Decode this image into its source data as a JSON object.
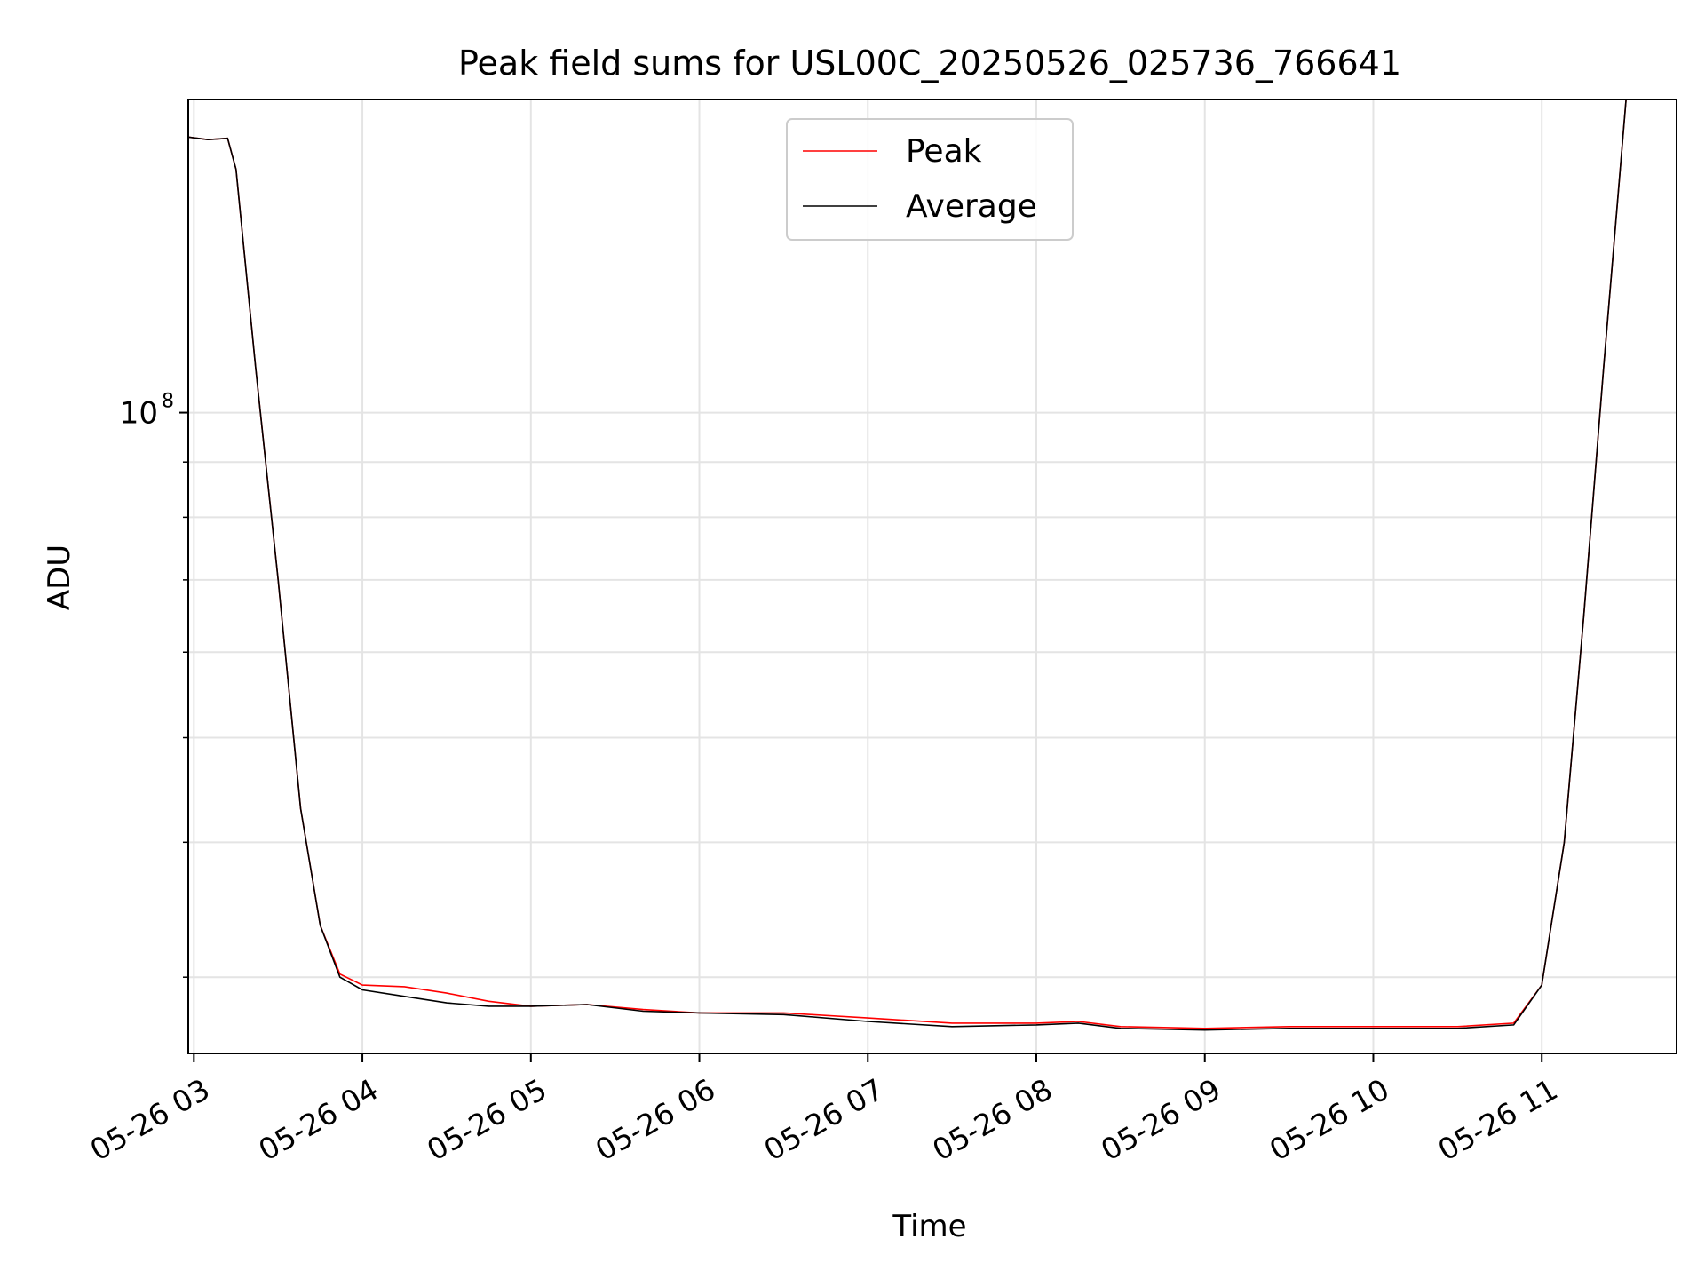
{
  "chart_data": {
    "type": "line",
    "title": "Peak field sums for USL00C_20250526_025736_766641",
    "xlabel": "Time",
    "ylabel": "ADU",
    "y_scale": "log",
    "ylim": [
      25500000,
      195000000
    ],
    "xlim": [
      "2025-05-26 02:58",
      "2025-05-26 11:48"
    ],
    "grid": true,
    "legend_position": "upper-center",
    "x_ticks": [
      {
        "t": "2025-05-26 03:00",
        "label": "05-26 03"
      },
      {
        "t": "2025-05-26 04:00",
        "label": "05-26 04"
      },
      {
        "t": "2025-05-26 05:00",
        "label": "05-26 05"
      },
      {
        "t": "2025-05-26 06:00",
        "label": "05-26 06"
      },
      {
        "t": "2025-05-26 07:00",
        "label": "05-26 07"
      },
      {
        "t": "2025-05-26 08:00",
        "label": "05-26 08"
      },
      {
        "t": "2025-05-26 09:00",
        "label": "05-26 09"
      },
      {
        "t": "2025-05-26 10:00",
        "label": "05-26 10"
      },
      {
        "t": "2025-05-26 11:00",
        "label": "05-26 11"
      }
    ],
    "y_major_tick": {
      "value": 100000000,
      "label_base": "10",
      "label_exp": "8"
    },
    "y_minor_ticks": [
      30000000,
      40000000,
      50000000,
      60000000,
      70000000,
      80000000,
      90000000
    ],
    "series": [
      {
        "name": "Peak",
        "color": "#ff0000",
        "points": [
          [
            "2025-05-26 02:58",
            180000000
          ],
          [
            "2025-05-26 03:05",
            179000000
          ],
          [
            "2025-05-26 03:12",
            179500000
          ],
          [
            "2025-05-26 03:15",
            168000000
          ],
          [
            "2025-05-26 03:22",
            110000000
          ],
          [
            "2025-05-26 03:30",
            70000000
          ],
          [
            "2025-05-26 03:38",
            43000000
          ],
          [
            "2025-05-26 03:45",
            33500000
          ],
          [
            "2025-05-26 03:52",
            30200000
          ],
          [
            "2025-05-26 04:00",
            29500000
          ],
          [
            "2025-05-26 04:15",
            29400000
          ],
          [
            "2025-05-26 04:30",
            29000000
          ],
          [
            "2025-05-26 04:45",
            28500000
          ],
          [
            "2025-05-26 05:00",
            28200000
          ],
          [
            "2025-05-26 05:20",
            28300000
          ],
          [
            "2025-05-26 05:40",
            28000000
          ],
          [
            "2025-05-26 06:00",
            27800000
          ],
          [
            "2025-05-26 06:30",
            27800000
          ],
          [
            "2025-05-26 07:00",
            27500000
          ],
          [
            "2025-05-26 07:30",
            27200000
          ],
          [
            "2025-05-26 08:00",
            27200000
          ],
          [
            "2025-05-26 08:15",
            27300000
          ],
          [
            "2025-05-26 08:30",
            27000000
          ],
          [
            "2025-05-26 09:00",
            26900000
          ],
          [
            "2025-05-26 09:30",
            27000000
          ],
          [
            "2025-05-26 10:00",
            27000000
          ],
          [
            "2025-05-26 10:30",
            27000000
          ],
          [
            "2025-05-26 10:50",
            27200000
          ],
          [
            "2025-05-26 11:00",
            29500000
          ],
          [
            "2025-05-26 11:08",
            40000000
          ],
          [
            "2025-05-26 11:15",
            65000000
          ],
          [
            "2025-05-26 11:22",
            110000000
          ],
          [
            "2025-05-26 11:30",
            195000000
          ],
          [
            "2025-05-26 11:35",
            195000000
          ]
        ]
      },
      {
        "name": "Average",
        "color": "#000000",
        "points": [
          [
            "2025-05-26 02:58",
            180000000
          ],
          [
            "2025-05-26 03:05",
            179000000
          ],
          [
            "2025-05-26 03:12",
            179500000
          ],
          [
            "2025-05-26 03:15",
            168000000
          ],
          [
            "2025-05-26 03:22",
            110000000
          ],
          [
            "2025-05-26 03:30",
            70000000
          ],
          [
            "2025-05-26 03:38",
            43000000
          ],
          [
            "2025-05-26 03:45",
            33500000
          ],
          [
            "2025-05-26 03:52",
            30000000
          ],
          [
            "2025-05-26 04:00",
            29200000
          ],
          [
            "2025-05-26 04:15",
            28800000
          ],
          [
            "2025-05-26 04:30",
            28400000
          ],
          [
            "2025-05-26 04:45",
            28200000
          ],
          [
            "2025-05-26 05:00",
            28200000
          ],
          [
            "2025-05-26 05:20",
            28300000
          ],
          [
            "2025-05-26 05:40",
            27900000
          ],
          [
            "2025-05-26 06:00",
            27800000
          ],
          [
            "2025-05-26 06:30",
            27700000
          ],
          [
            "2025-05-26 07:00",
            27300000
          ],
          [
            "2025-05-26 07:30",
            27000000
          ],
          [
            "2025-05-26 08:00",
            27100000
          ],
          [
            "2025-05-26 08:15",
            27200000
          ],
          [
            "2025-05-26 08:30",
            26900000
          ],
          [
            "2025-05-26 09:00",
            26800000
          ],
          [
            "2025-05-26 09:30",
            26900000
          ],
          [
            "2025-05-26 10:00",
            26900000
          ],
          [
            "2025-05-26 10:30",
            26900000
          ],
          [
            "2025-05-26 10:50",
            27100000
          ],
          [
            "2025-05-26 11:00",
            29500000
          ],
          [
            "2025-05-26 11:08",
            40000000
          ],
          [
            "2025-05-26 11:15",
            65000000
          ],
          [
            "2025-05-26 11:22",
            110000000
          ],
          [
            "2025-05-26 11:30",
            195000000
          ],
          [
            "2025-05-26 11:35",
            195000000
          ]
        ]
      }
    ]
  }
}
